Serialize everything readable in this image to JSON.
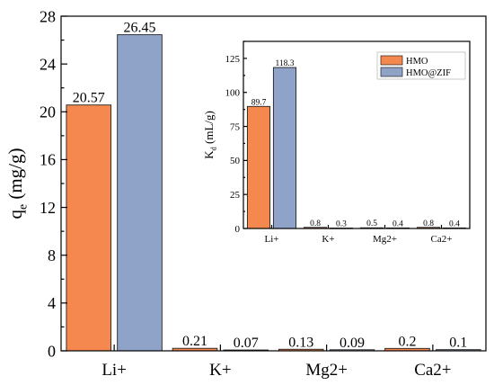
{
  "chart_data": [
    {
      "type": "bar",
      "categories": [
        "Li+",
        "K+",
        "Mg2+",
        "Ca2+"
      ],
      "series": [
        {
          "name": "HMO",
          "color": "#f4884f",
          "values": [
            20.57,
            0.21,
            0.13,
            0.2
          ],
          "labels": [
            "20.57",
            "0.21",
            "0.13",
            "0.2"
          ]
        },
        {
          "name": "HMO@ZIF",
          "color": "#8fa3c9",
          "values": [
            26.45,
            0.07,
            0.09,
            0.1
          ],
          "labels": [
            "26.45",
            "0.07",
            "0.09",
            "0.1"
          ]
        }
      ],
      "ylabel_main": "q",
      "ylabel_sub": "e",
      "ylabel_unit": " (mg/g)",
      "ylim": [
        0,
        28
      ],
      "yticks": [
        0,
        4,
        8,
        12,
        16,
        20,
        24,
        28
      ],
      "grid": false
    },
    {
      "type": "bar",
      "categories": [
        "Li+",
        "K+",
        "Mg2+",
        "Ca2+"
      ],
      "series": [
        {
          "name": "HMO",
          "color": "#f4884f",
          "values": [
            89.7,
            0.8,
            0.5,
            0.8
          ],
          "labels": [
            "89.7",
            "0.8",
            "0.5",
            "0.8"
          ]
        },
        {
          "name": "HMO@ZIF",
          "color": "#8fa3c9",
          "values": [
            118.3,
            0.3,
            0.4,
            0.4
          ],
          "labels": [
            "118.3",
            "0.3",
            "0.4",
            "0.4"
          ]
        }
      ],
      "ylabel_main": "K",
      "ylabel_sub": "d",
      "ylabel_unit": " (mL/g)",
      "ylim": [
        0,
        137.5
      ],
      "yticks": [
        0,
        25,
        50,
        75,
        100,
        125
      ],
      "legend_position": "top-right",
      "grid": false
    }
  ]
}
